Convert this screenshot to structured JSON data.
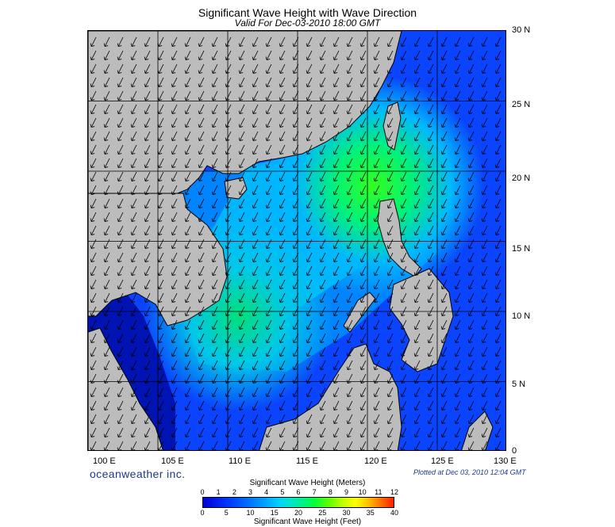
{
  "header": {
    "title": "Significant Wave Height with Wave Direction",
    "subtitle": "Valid For Dec-03-2010 18:00 GMT"
  },
  "map": {
    "lon_range": [
      100,
      130
    ],
    "lat_range": [
      0,
      30
    ],
    "lat_labels": [
      "30 N",
      "25 N",
      "20 N",
      "15 N",
      "10 N",
      "5 N",
      "0"
    ],
    "lon_labels": [
      "100 E",
      "105 E",
      "110 E",
      "115 E",
      "120 E",
      "125 E",
      "130 E"
    ],
    "colors": {
      "land": "#bcbcbc",
      "ocean_deep": "#0033ff",
      "coast": "#000000"
    }
  },
  "footer": {
    "brand": "oceanweather inc.",
    "plot_note": "Plotted at Dec 03, 2010 12:04 GMT"
  },
  "legend": {
    "meters_title": "Significant Wave Height (Meters)",
    "feet_title": "Significant Wave Height (Feet)",
    "meters_ticks": [
      "0",
      "1",
      "2",
      "3",
      "4",
      "5",
      "6",
      "7",
      "8",
      "9",
      "10",
      "11",
      "12"
    ],
    "feet_ticks": [
      "0",
      "5",
      "10",
      "15",
      "20",
      "25",
      "30",
      "35",
      "40"
    ]
  }
}
